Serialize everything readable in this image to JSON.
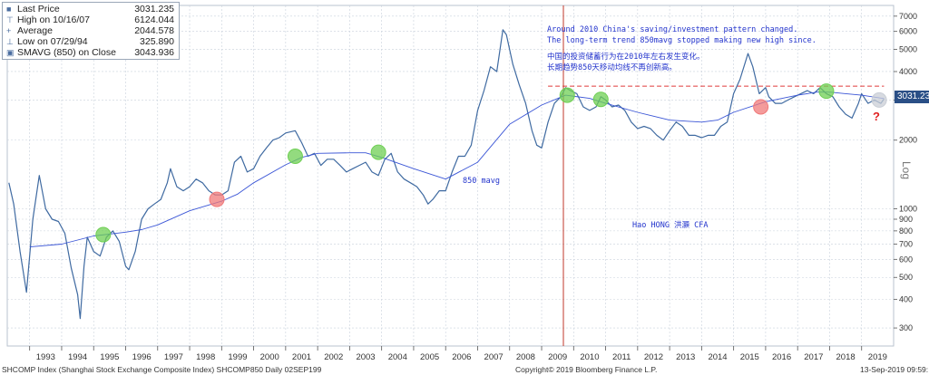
{
  "legend": [
    {
      "symbol": "■",
      "label": "Last Price",
      "value": "3031.235"
    },
    {
      "symbol": "⊤",
      "label": "High on 10/16/07",
      "value": "6124.044"
    },
    {
      "symbol": "+",
      "label": "Average",
      "value": "2044.578"
    },
    {
      "symbol": "⊥",
      "label": "Low on 07/29/94",
      "value": "325.890"
    },
    {
      "symbol": "▣",
      "label": "SMAVG (850)  on Close",
      "value": "3043.936"
    }
  ],
  "annotations": {
    "en_line1": "Around 2010 China's saving/investment pattern changed.",
    "en_line2": "The long-term trend 850mavg stopped making new high since.",
    "cn_line1": "中国的投资储蓄行为在2010年左右发生变化。",
    "cn_line2": "长期趋势850天移动均线不再创新高。",
    "mavg_label": "850 mavg",
    "author": "Hao HONG 洪灝 CFA",
    "question": "?"
  },
  "price_tag": "3031.23",
  "axis_title": "Log",
  "footer": {
    "left": "SHCOMP Index (Shanghai Stock Exchange Composite Index)  SHCOMP850  Daily 02SEP199",
    "center": "Copyright© 2019 Bloomberg Finance L.P.",
    "right": "13-Sep-2019 09:59:"
  },
  "colors": {
    "price": "#3f6aa1",
    "mavg": "#3a55d6",
    "hline": "#e03a3a",
    "vline": "#c0392b",
    "green_circle": "#6fcf54",
    "red_circle": "#f07a7a"
  },
  "chart_data": {
    "type": "line",
    "title": "",
    "xlabel": "",
    "ylabel": "Log",
    "y_scale": "log",
    "ylim": [
      250,
      7800
    ],
    "xlim": [
      1992.3,
      2020.0
    ],
    "y_ticks": [
      300,
      400,
      500,
      600,
      700,
      800,
      900,
      1000,
      2000,
      3000,
      4000,
      5000,
      6000,
      7000
    ],
    "x_tick_labels": [
      "1993",
      "1994",
      "1995",
      "1996",
      "1997",
      "1998",
      "1999",
      "2000",
      "2001",
      "2002",
      "2003",
      "2004",
      "2005",
      "2006",
      "2007",
      "2008",
      "2009",
      "2010",
      "2011",
      "2012",
      "2013",
      "2014",
      "2015",
      "2016",
      "2017",
      "2018",
      "2019"
    ],
    "series": [
      {
        "name": "Last Price",
        "x": [
          1992.35,
          1992.5,
          1992.7,
          1992.9,
          1993.1,
          1993.3,
          1993.5,
          1993.7,
          1993.9,
          1994.1,
          1994.3,
          1994.5,
          1994.58,
          1994.7,
          1994.8,
          1995.0,
          1995.2,
          1995.4,
          1995.6,
          1995.8,
          1996.0,
          1996.1,
          1996.3,
          1996.5,
          1996.7,
          1996.9,
          1997.1,
          1997.3,
          1997.4,
          1997.6,
          1997.8,
          1998.0,
          1998.2,
          1998.4,
          1998.6,
          1998.8,
          1999.0,
          1999.2,
          1999.4,
          1999.6,
          1999.8,
          2000.0,
          2000.2,
          2000.4,
          2000.6,
          2000.8,
          2001.0,
          2001.3,
          2001.5,
          2001.7,
          2001.9,
          2002.1,
          2002.3,
          2002.5,
          2002.7,
          2002.9,
          2003.1,
          2003.3,
          2003.5,
          2003.7,
          2003.9,
          2004.1,
          2004.3,
          2004.5,
          2004.7,
          2004.9,
          2005.1,
          2005.3,
          2005.45,
          2005.6,
          2005.8,
          2006.0,
          2006.2,
          2006.4,
          2006.6,
          2006.8,
          2007.0,
          2007.2,
          2007.4,
          2007.6,
          2007.79,
          2007.9,
          2008.1,
          2008.3,
          2008.5,
          2008.7,
          2008.85,
          2009.0,
          2009.2,
          2009.4,
          2009.6,
          2009.75,
          2009.9,
          2010.1,
          2010.3,
          2010.5,
          2010.7,
          2010.85,
          2011.0,
          2011.2,
          2011.4,
          2011.6,
          2011.8,
          2012.0,
          2012.2,
          2012.4,
          2012.6,
          2012.8,
          2013.0,
          2013.2,
          2013.4,
          2013.6,
          2013.8,
          2014.0,
          2014.2,
          2014.4,
          2014.6,
          2014.8,
          2015.0,
          2015.2,
          2015.45,
          2015.6,
          2015.8,
          2016.0,
          2016.1,
          2016.3,
          2016.5,
          2016.7,
          2016.9,
          2017.1,
          2017.3,
          2017.5,
          2017.7,
          2017.9,
          2018.1,
          2018.3,
          2018.5,
          2018.7,
          2018.9,
          2019.0,
          2019.2,
          2019.4,
          2019.6,
          2019.7
        ],
        "values": [
          1300,
          1050,
          650,
          430,
          900,
          1400,
          1000,
          900,
          880,
          780,
          550,
          420,
          330,
          560,
          750,
          650,
          620,
          750,
          800,
          720,
          560,
          540,
          650,
          900,
          1000,
          1050,
          1100,
          1300,
          1500,
          1250,
          1200,
          1250,
          1350,
          1300,
          1200,
          1150,
          1150,
          1200,
          1600,
          1700,
          1450,
          1500,
          1700,
          1850,
          2000,
          2050,
          2150,
          2200,
          1950,
          1700,
          1750,
          1550,
          1650,
          1650,
          1550,
          1450,
          1500,
          1550,
          1600,
          1450,
          1400,
          1650,
          1750,
          1450,
          1350,
          1300,
          1250,
          1150,
          1050,
          1100,
          1200,
          1200,
          1450,
          1700,
          1700,
          1900,
          2700,
          3300,
          4200,
          4000,
          6100,
          5800,
          4300,
          3500,
          2900,
          2200,
          1900,
          1850,
          2400,
          2900,
          3100,
          3400,
          3300,
          3200,
          2800,
          2700,
          2800,
          3100,
          3000,
          2800,
          2850,
          2700,
          2400,
          2250,
          2300,
          2250,
          2100,
          2000,
          2200,
          2400,
          2300,
          2100,
          2100,
          2050,
          2100,
          2100,
          2300,
          2400,
          3200,
          3700,
          4800,
          4200,
          3200,
          3400,
          3100,
          2900,
          2900,
          3000,
          3100,
          3200,
          3300,
          3200,
          3400,
          3200,
          3100,
          2800,
          2600,
          2500,
          2900,
          3200,
          2900,
          3000,
          2900,
          3031
        ]
      },
      {
        "name": "SMAVG (850) on Close",
        "x": [
          1993.0,
          1994.0,
          1995.0,
          1996.0,
          1996.5,
          1997.0,
          1998.0,
          1999.0,
          1999.5,
          2000.0,
          2001.0,
          2001.5,
          2002.0,
          2003.0,
          2003.5,
          2004.0,
          2005.0,
          2006.0,
          2007.0,
          2008.0,
          2009.0,
          2009.75,
          2010.5,
          2011.0,
          2012.0,
          2013.0,
          2014.0,
          2014.5,
          2015.0,
          2016.0,
          2017.0,
          2017.6,
          2018.0,
          2018.5,
          2019.0,
          2019.7
        ],
        "values": [
          680,
          700,
          760,
          790,
          810,
          850,
          980,
          1080,
          1160,
          1300,
          1560,
          1680,
          1750,
          1760,
          1760,
          1680,
          1500,
          1350,
          1600,
          2350,
          2850,
          3150,
          3050,
          2900,
          2650,
          2450,
          2400,
          2450,
          2650,
          2950,
          3150,
          3250,
          3250,
          3200,
          3150,
          3044
        ]
      }
    ],
    "reference_lines": [
      {
        "orientation": "horizontal",
        "y": 3450,
        "x_range": [
          2009.2,
          2019.7
        ]
      },
      {
        "orientation": "vertical",
        "x": 2009.68
      }
    ],
    "markers": [
      {
        "x": 1995.3,
        "y": 770,
        "color": "green"
      },
      {
        "x": 1998.85,
        "y": 1100,
        "color": "red"
      },
      {
        "x": 2001.3,
        "y": 1700,
        "color": "green"
      },
      {
        "x": 2003.9,
        "y": 1770,
        "color": "green"
      },
      {
        "x": 2009.8,
        "y": 3150,
        "color": "green"
      },
      {
        "x": 2010.85,
        "y": 3020,
        "color": "green"
      },
      {
        "x": 2015.85,
        "y": 2800,
        "color": "red"
      },
      {
        "x": 2017.9,
        "y": 3280,
        "color": "green"
      },
      {
        "x": 2019.55,
        "y": 3000,
        "color": "gray"
      }
    ],
    "grid": true,
    "legend_position": "top-left"
  }
}
